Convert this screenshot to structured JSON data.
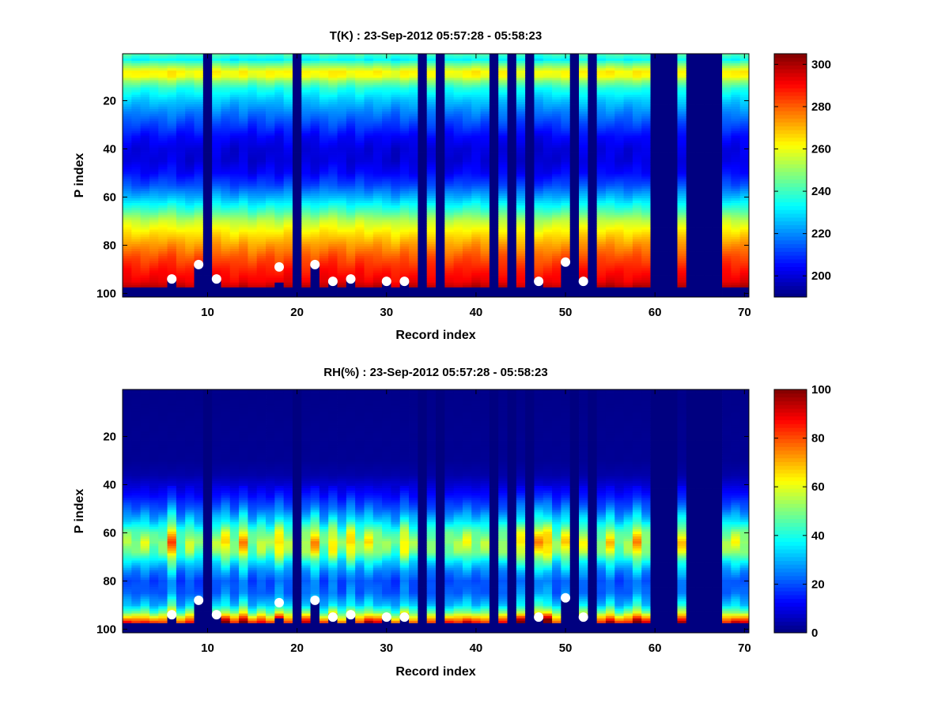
{
  "chart_data": [
    {
      "type": "heatmap",
      "title": "T(K) : 23-Sep-2012 05:57:28 - 05:58:23",
      "xlabel": "Record index",
      "ylabel": "P index",
      "xlim": [
        0.5,
        70.5
      ],
      "ylim": [
        0.5,
        101.5
      ],
      "y_reversed": true,
      "xticks": [
        10,
        20,
        30,
        40,
        50,
        60,
        70
      ],
      "yticks": [
        20,
        40,
        60,
        80,
        100
      ],
      "clim": [
        190,
        305
      ],
      "colorbar_ticks": [
        200,
        220,
        240,
        260,
        280,
        300
      ],
      "colormap": "jet",
      "n_records": 70,
      "n_levels": 101,
      "profile": {
        "p": [
          1,
          3,
          5,
          8,
          10,
          12,
          15,
          20,
          25,
          30,
          35,
          40,
          45,
          50,
          55,
          60,
          65,
          70,
          75,
          80,
          85,
          90,
          95,
          97
        ],
        "values": [
          240,
          232,
          245,
          262,
          260,
          248,
          236,
          226,
          218,
          211,
          204,
          200,
          200,
          204,
          212,
          224,
          238,
          254,
          264,
          273,
          281,
          287,
          292,
          297
        ]
      },
      "column_offsets": [
        2,
        1,
        0,
        1,
        2,
        3,
        0,
        -1,
        1,
        0,
        2,
        0,
        -1,
        1,
        -2,
        0,
        1,
        -1,
        2,
        0,
        0,
        -1,
        2,
        3,
        1,
        -1,
        2,
        0,
        1,
        0,
        -2,
        1,
        0,
        0,
        1,
        0,
        -1,
        0,
        1,
        2,
        0,
        0,
        1,
        0,
        -1,
        0,
        -2,
        -1,
        0,
        1,
        0,
        2,
        0,
        1,
        2,
        1,
        0,
        2,
        1,
        0,
        0,
        0,
        1,
        0,
        0,
        0,
        0,
        2,
        1,
        2
      ],
      "missing_records": [
        10,
        20,
        34,
        36,
        42,
        44,
        46,
        51,
        53,
        60,
        61,
        62,
        64,
        65,
        66,
        67
      ],
      "missing_levels_from": 98,
      "markers": [
        {
          "record": 6,
          "p": 94
        },
        {
          "record": 9,
          "p": 88
        },
        {
          "record": 11,
          "p": 94
        },
        {
          "record": 18,
          "p": 89
        },
        {
          "record": 22,
          "p": 88
        },
        {
          "record": 24,
          "p": 95
        },
        {
          "record": 26,
          "p": 94
        },
        {
          "record": 30,
          "p": 95
        },
        {
          "record": 32,
          "p": 95
        },
        {
          "record": 47,
          "p": 95
        },
        {
          "record": 50,
          "p": 87
        },
        {
          "record": 52,
          "p": 95
        }
      ]
    },
    {
      "type": "heatmap",
      "title": "RH(%) : 23-Sep-2012 05:57:28 - 05:58:23",
      "xlabel": "Record index",
      "ylabel": "P index",
      "xlim": [
        0.5,
        70.5
      ],
      "ylim": [
        0.5,
        101.5
      ],
      "y_reversed": true,
      "xticks": [
        10,
        20,
        30,
        40,
        50,
        60,
        70
      ],
      "yticks": [
        20,
        40,
        60,
        80,
        100
      ],
      "clim": [
        0,
        100
      ],
      "colorbar_ticks": [
        0,
        20,
        40,
        60,
        80,
        100
      ],
      "colormap": "jet",
      "n_records": 70,
      "n_levels": 101,
      "profile": {
        "p": [
          1,
          30,
          36,
          40,
          45,
          50,
          55,
          60,
          64,
          68,
          72,
          76,
          80,
          85,
          90,
          93,
          95,
          97
        ],
        "values": [
          1,
          2,
          4,
          8,
          14,
          22,
          33,
          48,
          55,
          50,
          36,
          26,
          20,
          22,
          32,
          48,
          66,
          85
        ]
      },
      "column_multipliers": [
        1.0,
        0.95,
        1.05,
        0.9,
        0.95,
        1.4,
        0.85,
        1.05,
        0.9,
        1.0,
        1.0,
        1.2,
        0.95,
        1.3,
        0.9,
        1.05,
        0.95,
        1.25,
        1.0,
        1.0,
        1.05,
        1.3,
        0.9,
        1.2,
        0.9,
        1.25,
        0.95,
        1.15,
        1.0,
        0.95,
        0.85,
        1.2,
        0.95,
        1.0,
        0.95,
        1.1,
        0.95,
        1.0,
        1.1,
        0.95,
        1.0,
        0.9,
        1.0,
        0.9,
        1.2,
        1.0,
        1.3,
        1.3,
        0.95,
        1.2,
        1.0,
        1.1,
        1.0,
        0.95,
        1.2,
        0.9,
        1.0,
        1.3,
        1.0,
        1.0,
        1.0,
        1.0,
        1.2,
        1.0,
        1.0,
        1.0,
        1.0,
        1.0,
        1.1,
        1.0
      ],
      "missing_records": [
        10,
        20,
        34,
        36,
        42,
        44,
        46,
        51,
        53,
        60,
        61,
        62,
        64,
        65,
        66,
        67
      ],
      "missing_levels_from": 98,
      "markers": [
        {
          "record": 6,
          "p": 94
        },
        {
          "record": 9,
          "p": 88
        },
        {
          "record": 11,
          "p": 94
        },
        {
          "record": 18,
          "p": 89
        },
        {
          "record": 22,
          "p": 88
        },
        {
          "record": 24,
          "p": 95
        },
        {
          "record": 26,
          "p": 94
        },
        {
          "record": 30,
          "p": 95
        },
        {
          "record": 32,
          "p": 95
        },
        {
          "record": 47,
          "p": 95
        },
        {
          "record": 50,
          "p": 87
        },
        {
          "record": 52,
          "p": 95
        }
      ]
    }
  ]
}
